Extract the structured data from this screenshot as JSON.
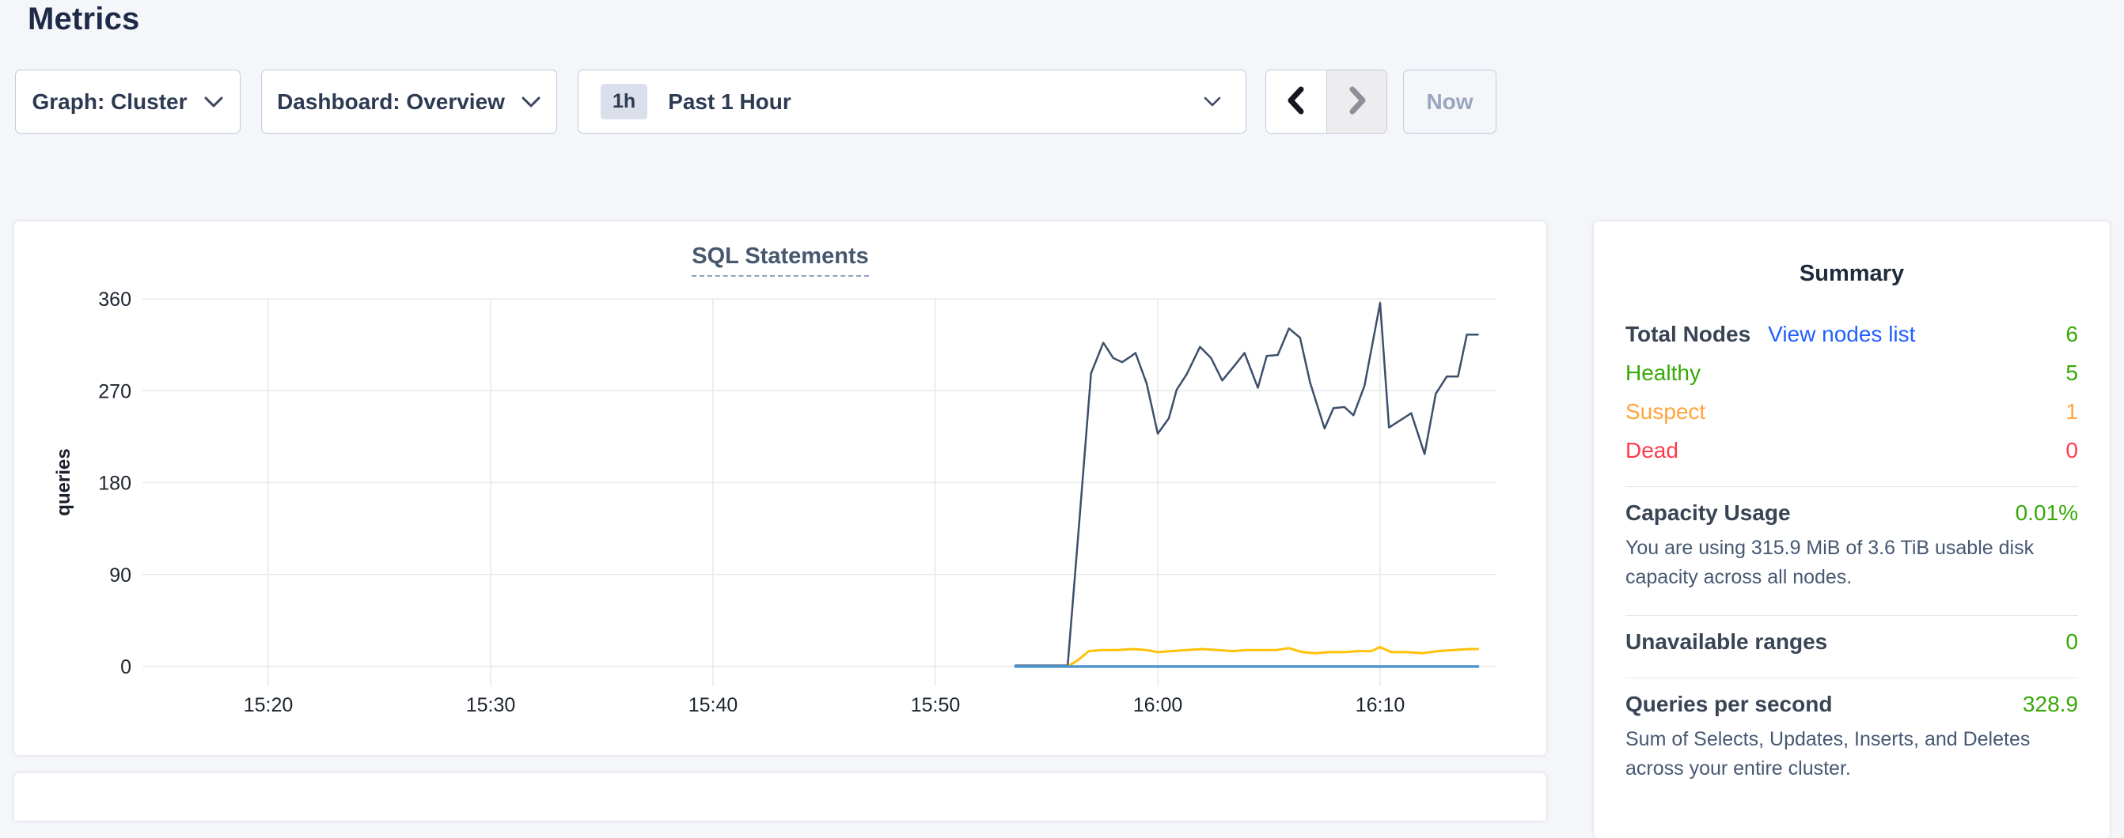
{
  "page": {
    "title": "Metrics"
  },
  "toolbar": {
    "graph_dropdown": "Graph: Cluster",
    "dashboard_dropdown": "Dashboard: Overview",
    "time_badge": "1h",
    "time_value": "Past 1 Hour",
    "now_label": "Now"
  },
  "chart_data": {
    "type": "line",
    "title": "SQL Statements",
    "ylabel": "queries",
    "xlabel": "",
    "yticks": [
      0,
      90,
      180,
      270,
      360
    ],
    "ylim": [
      0,
      405
    ],
    "grid": true,
    "legend": "none",
    "x_unit": "minutes after 15:20",
    "x_domain": [
      -5.65,
      55.2
    ],
    "xticks": [
      {
        "t": 0,
        "label": "15:20"
      },
      {
        "t": 10,
        "label": "15:30"
      },
      {
        "t": 20,
        "label": "15:40"
      },
      {
        "t": 30,
        "label": "15:50"
      },
      {
        "t": 40,
        "label": "16:00"
      },
      {
        "t": 50,
        "label": "16:10"
      }
    ],
    "series": [
      {
        "name": "navy",
        "color": "#3e4f6d",
        "points": [
          [
            33.6,
            1
          ],
          [
            35.95,
            1
          ],
          [
            36.5,
            150
          ],
          [
            37.0,
            287
          ],
          [
            37.55,
            317
          ],
          [
            38.0,
            302
          ],
          [
            38.4,
            298
          ],
          [
            38.75,
            303
          ],
          [
            39.0,
            307
          ],
          [
            39.5,
            277
          ],
          [
            40.0,
            228
          ],
          [
            40.5,
            243
          ],
          [
            40.85,
            271
          ],
          [
            41.3,
            286
          ],
          [
            41.9,
            313
          ],
          [
            42.4,
            302
          ],
          [
            42.9,
            280
          ],
          [
            43.5,
            296
          ],
          [
            43.9,
            307
          ],
          [
            44.5,
            273
          ],
          [
            44.9,
            304
          ],
          [
            45.4,
            305
          ],
          [
            45.9,
            331
          ],
          [
            46.4,
            322
          ],
          [
            46.85,
            278
          ],
          [
            47.5,
            233
          ],
          [
            47.9,
            253
          ],
          [
            48.4,
            254
          ],
          [
            48.8,
            246
          ],
          [
            49.3,
            275
          ],
          [
            50.0,
            356
          ],
          [
            50.4,
            234
          ],
          [
            50.9,
            241
          ],
          [
            51.4,
            248
          ],
          [
            52.0,
            208
          ],
          [
            52.5,
            267
          ],
          [
            53.0,
            284
          ],
          [
            53.5,
            284
          ],
          [
            53.9,
            325
          ],
          [
            54.4,
            325
          ]
        ]
      },
      {
        "name": "yellow",
        "color": "#ffc109",
        "points": [
          [
            33.6,
            0
          ],
          [
            35.95,
            0
          ],
          [
            36.4,
            6
          ],
          [
            36.9,
            15
          ],
          [
            37.5,
            16
          ],
          [
            38.2,
            16
          ],
          [
            38.9,
            17
          ],
          [
            39.5,
            16
          ],
          [
            40.0,
            14
          ],
          [
            40.6,
            15
          ],
          [
            41.3,
            16
          ],
          [
            42.0,
            17
          ],
          [
            42.7,
            16
          ],
          [
            43.4,
            15
          ],
          [
            44.0,
            16
          ],
          [
            44.7,
            16
          ],
          [
            45.3,
            16
          ],
          [
            45.9,
            18
          ],
          [
            46.5,
            14
          ],
          [
            47.1,
            13
          ],
          [
            47.7,
            14
          ],
          [
            48.4,
            14
          ],
          [
            49.0,
            15
          ],
          [
            49.6,
            15
          ],
          [
            50.0,
            19
          ],
          [
            50.5,
            14
          ],
          [
            51.2,
            14
          ],
          [
            51.9,
            13
          ],
          [
            52.6,
            15
          ],
          [
            53.3,
            16
          ],
          [
            54.0,
            17
          ],
          [
            54.4,
            17
          ]
        ]
      },
      {
        "name": "blue",
        "color": "#4d95cc",
        "points": [
          [
            33.6,
            0
          ],
          [
            54.4,
            0
          ]
        ]
      }
    ]
  },
  "summary": {
    "title": "Summary",
    "total_nodes_label": "Total Nodes",
    "view_nodes_link": "View nodes list",
    "total_nodes_value": "6",
    "node_rows": [
      {
        "label": "Healthy",
        "value": "5",
        "color": "#37a806"
      },
      {
        "label": "Suspect",
        "value": "1",
        "color": "#ffa53b"
      },
      {
        "label": "Dead",
        "value": "0",
        "color": "#ff3b4f"
      }
    ],
    "capacity_label": "Capacity Usage",
    "capacity_value": "0.01%",
    "capacity_desc": "You are using 315.9 MiB of 3.6 TiB usable disk capacity across all nodes.",
    "unavailable_label": "Unavailable ranges",
    "unavailable_value": "0",
    "qps_label": "Queries per second",
    "qps_value": "328.9",
    "qps_desc": "Sum of Selects, Updates, Inserts, and Deletes across your entire cluster."
  },
  "colors": {
    "link_blue": "#2160ff",
    "healthy_green": "#37a806",
    "suspect_orange": "#ffa53b",
    "dead_red": "#ff3b4f",
    "value_green": "#37a806",
    "series_navy": "#3e4f6d",
    "series_yellow": "#ffc109",
    "series_blue": "#4d95cc",
    "page_background": "#f4f6fa"
  }
}
